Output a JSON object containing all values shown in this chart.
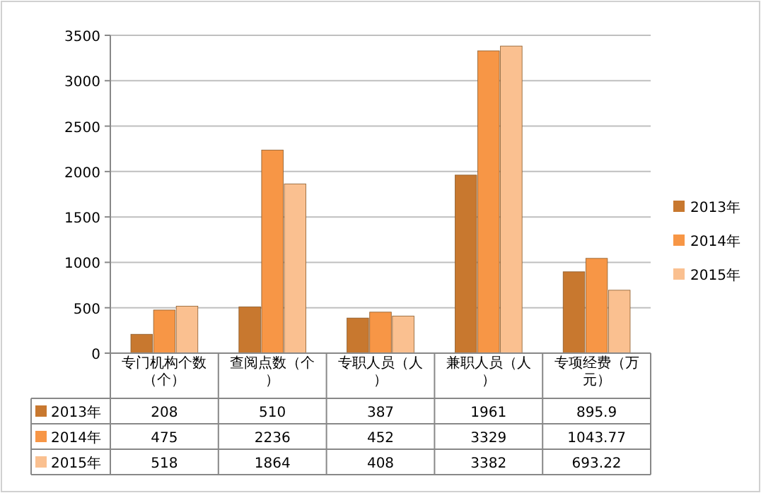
{
  "chart_data": {
    "type": "bar",
    "categories": [
      "专门机构个数（个）",
      "查阅点数（个）",
      "专职人员（人）",
      "兼职人员（人）",
      "专项经费（万元）"
    ],
    "series": [
      {
        "name": "2013年",
        "color": "#c8782f",
        "values": [
          208,
          510,
          387,
          1961,
          895.9
        ]
      },
      {
        "name": "2014年",
        "color": "#f79646",
        "values": [
          475,
          2236,
          452,
          3329,
          1043.77
        ]
      },
      {
        "name": "2015年",
        "color": "#fac090",
        "values": [
          518,
          1864,
          408,
          3382,
          693.22
        ]
      }
    ],
    "ylim": [
      0,
      3500
    ],
    "yticks": [
      0,
      500,
      1000,
      1500,
      2000,
      2500,
      3000,
      3500
    ],
    "grid": "y",
    "legend": "right",
    "data_labels": true
  }
}
